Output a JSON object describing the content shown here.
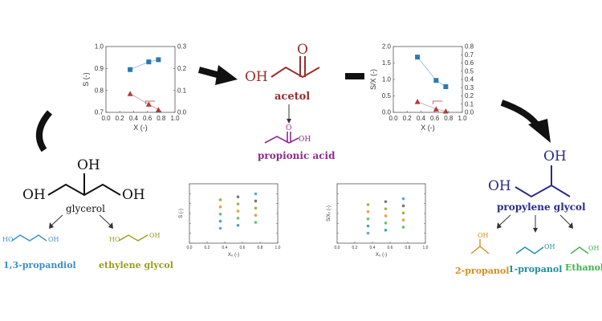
{
  "colors": {
    "acetol": "#9b2d2d",
    "propionic_acid": "#8e2a8e",
    "propylene_glycol": "#2a2a8c",
    "propandiol": "#3b8fd1",
    "ethylene_glycol": "#9a9a1a",
    "propanol2": "#e08a1a",
    "propanol1": "#1f8fa0",
    "ethanol": "#3cb54a",
    "blue_marker": "#2a7ab8",
    "red_marker": "#b03a3a"
  },
  "molecules": {
    "acetol": {
      "name": "acetol",
      "oh": "OH",
      "o": "O"
    },
    "propionic_acid": {
      "name": "propionic acid",
      "o": "O",
      "oh": "OH"
    },
    "glycerol": {
      "name": "glycerol",
      "oh_left": "OH",
      "oh_top": "OH",
      "oh_right": "OH"
    },
    "propylene_glycol": {
      "name": "propylene glycol",
      "oh_left": "OH",
      "oh_top": "OH"
    },
    "propandiol": {
      "name": "1,3-propandiol",
      "oh_left": "HO",
      "oh_right": "OH"
    },
    "ethylene_glycol": {
      "name": "ethylene glycol",
      "oh_left": "HO",
      "oh_right": "OH"
    },
    "propanol2": {
      "name": "2-propanol",
      "oh": "OH"
    },
    "propanol1": {
      "name": "1-propanol",
      "oh": "OH"
    },
    "ethanol": {
      "name": "Ethanol",
      "oh": "OH"
    }
  },
  "chart_data": [
    {
      "type": "scatter",
      "xlabel": "X (-)",
      "ylabel": "S (-)",
      "xticks": [
        "0.0",
        "0.2",
        "0.4",
        "0.6",
        "0.8",
        "1.0"
      ],
      "yticks_left": [
        "0.7",
        "0.8",
        "0.9",
        "1.0"
      ],
      "yticks_right": [
        "0.0",
        "0.1",
        "0.2",
        "0.3"
      ],
      "xlim": [
        0,
        1
      ],
      "ylim": [
        0.7,
        1.0
      ],
      "ylim_right": [
        0,
        0.3
      ],
      "series": [
        {
          "axis": "left",
          "marker": "square",
          "color": "#2a7ab8",
          "x": [
            0.35,
            0.62,
            0.76
          ],
          "y": [
            0.895,
            0.93,
            0.94
          ]
        },
        {
          "axis": "right",
          "marker": "triangle",
          "color": "#b03a3a",
          "x": [
            0.35,
            0.62,
            0.76
          ],
          "y": [
            0.085,
            0.037,
            0.012
          ]
        }
      ]
    },
    {
      "type": "scatter",
      "xlabel": "X (-)",
      "ylabel": "S/X (-)",
      "xticks": [
        "0.0",
        "0.2",
        "0.4",
        "0.6",
        "0.8",
        "1.0"
      ],
      "yticks_left": [
        "0.0",
        "0.5",
        "1.0",
        "1.5",
        "2.0"
      ],
      "yticks_right": [
        "0.0",
        "0.1",
        "0.2",
        "0.3",
        "0.4",
        "0.5",
        "0.6",
        "0.7",
        "0.8"
      ],
      "xlim": [
        0,
        1
      ],
      "ylim": [
        0,
        2.0
      ],
      "ylim_right": [
        0,
        0.8
      ],
      "series": [
        {
          "axis": "left",
          "marker": "square",
          "color": "#2a7ab8",
          "x": [
            0.35,
            0.62,
            0.76
          ],
          "y": [
            1.68,
            0.97,
            0.78
          ]
        },
        {
          "axis": "right",
          "marker": "triangle",
          "color": "#b03a3a",
          "x": [
            0.35,
            0.62,
            0.76
          ],
          "y": [
            0.13,
            0.04,
            0.015
          ]
        }
      ]
    },
    {
      "type": "scatter",
      "xlabel": "X₀ (-)",
      "ylabel": "S (-)",
      "xticks": [
        "0.0",
        "0.2",
        "0.4",
        "0.6",
        "0.8",
        "1.0"
      ],
      "xlim": [
        0,
        1
      ],
      "ylim": [
        0,
        1
      ]
    },
    {
      "type": "scatter",
      "xlabel": "X₀ (-)",
      "ylabel": "S/X₀ (-)",
      "xticks": [
        "0.0",
        "0.2",
        "0.4",
        "0.6",
        "0.8",
        "1.0"
      ],
      "xlim": [
        0,
        1
      ],
      "ylim": [
        0,
        1
      ]
    }
  ]
}
